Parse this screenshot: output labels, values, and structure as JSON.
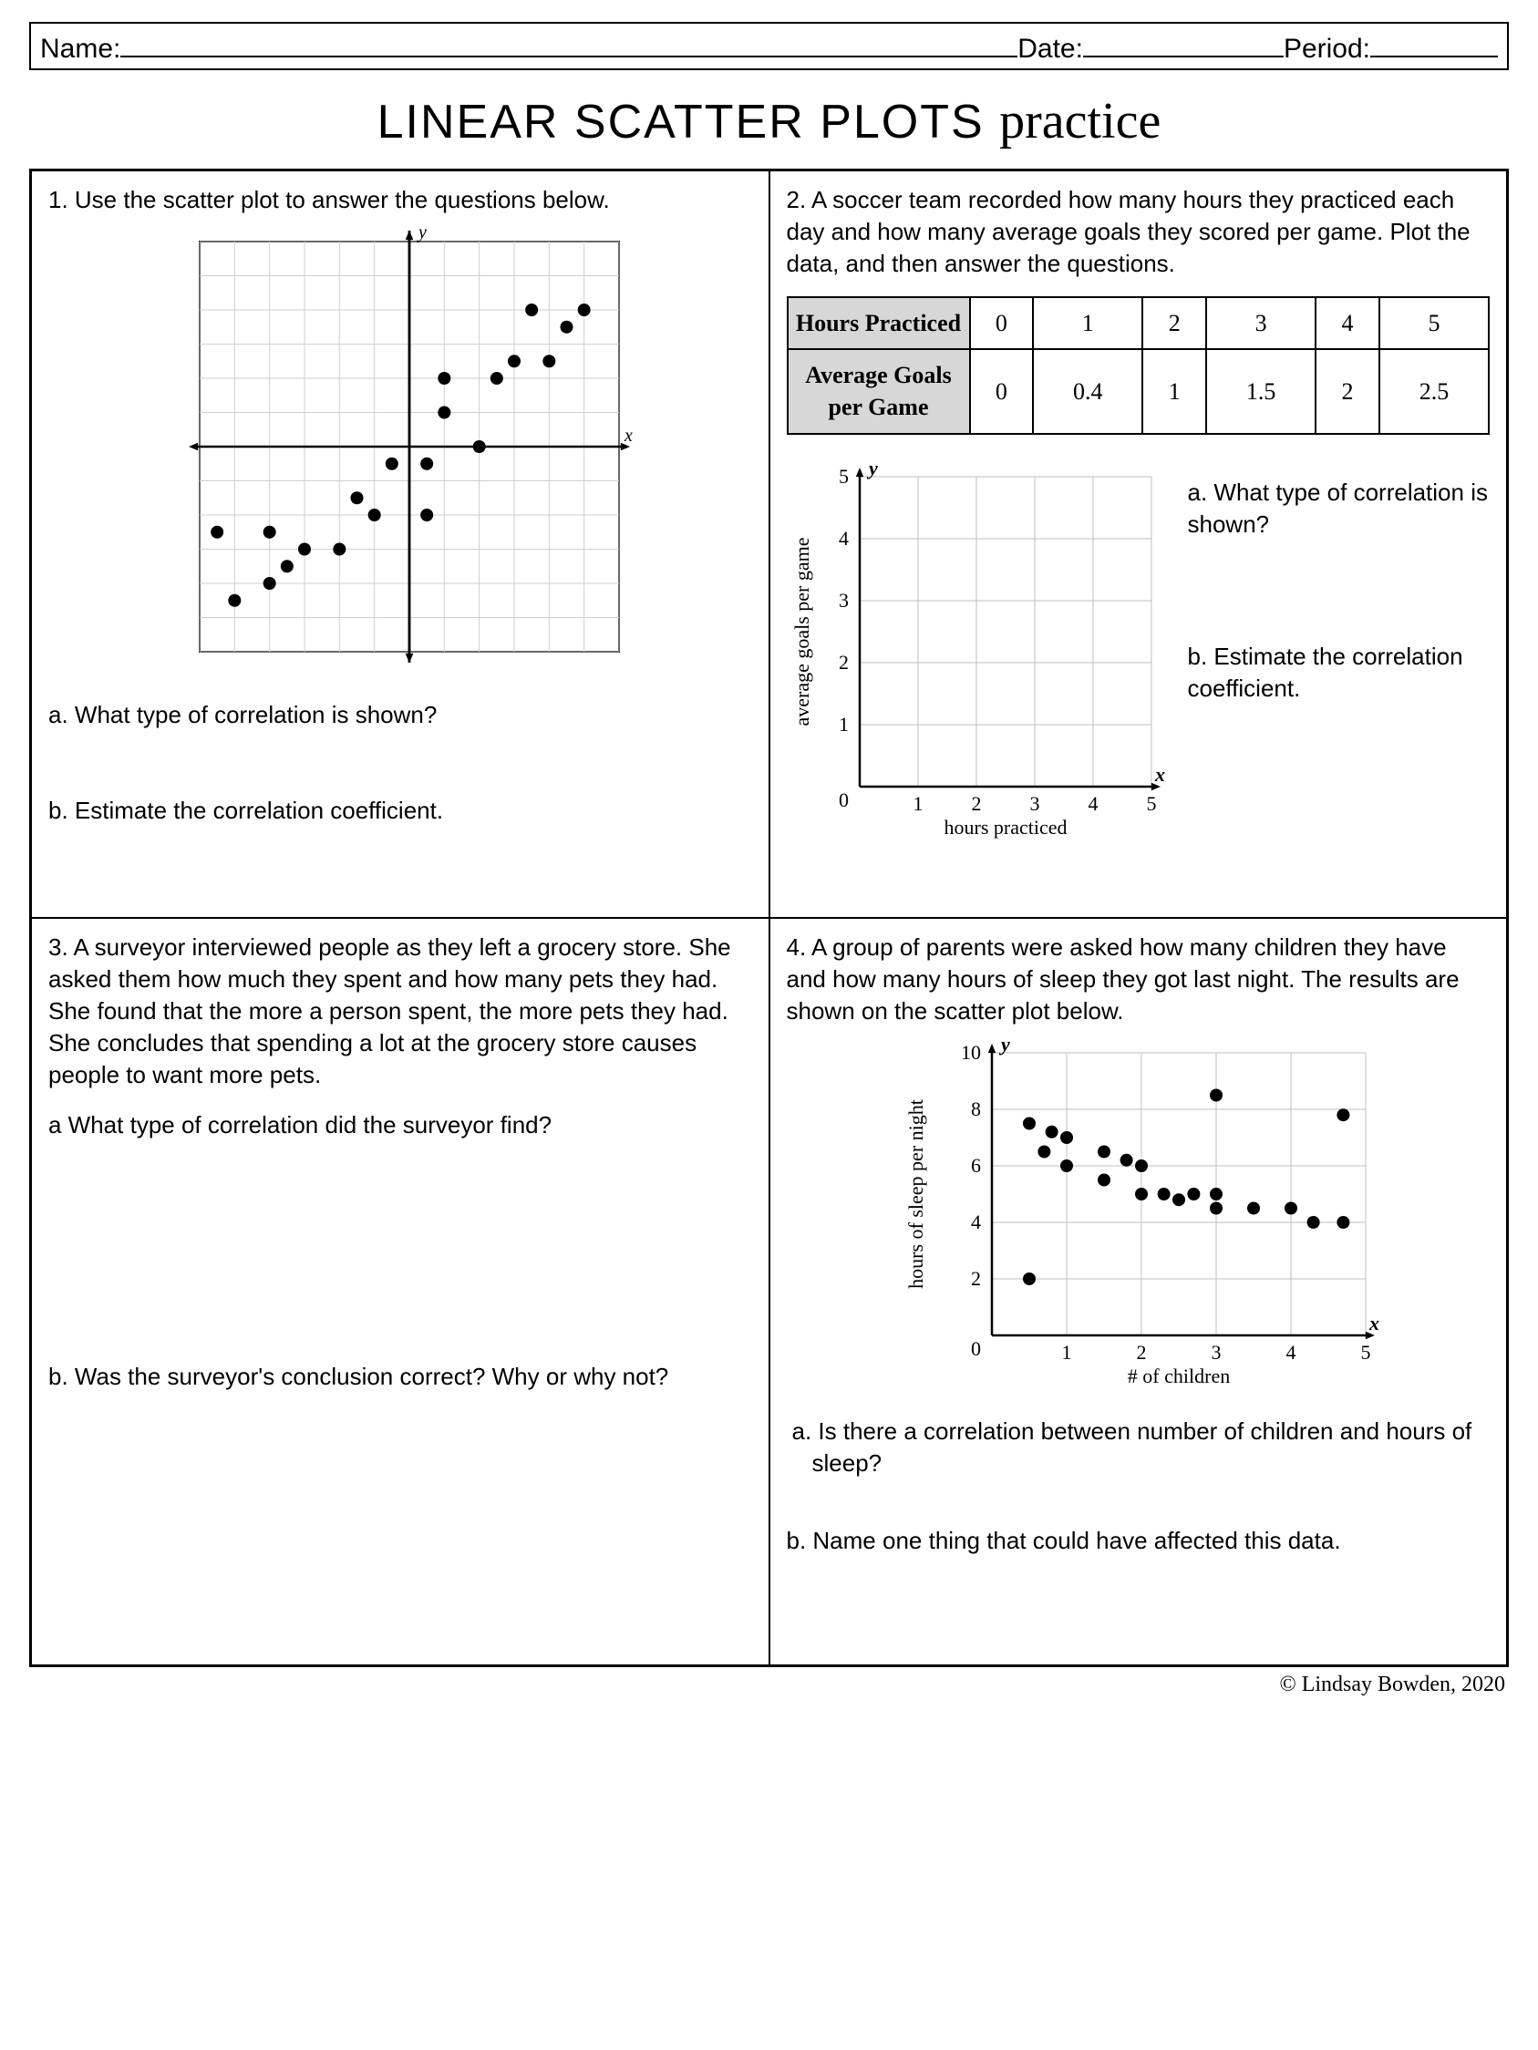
{
  "header": {
    "name_label": "Name:",
    "date_label": "Date:",
    "period_label": "Period:"
  },
  "title_main": "LINEAR SCATTER PLOTS ",
  "title_script": "practice",
  "footer": "© Lindsay Bowden, 2020",
  "q1": {
    "prompt": "1. Use the scatter plot to answer the questions below.",
    "qa": "a. What type of correlation is shown?",
    "qb": "b. Estimate the correlation coefficient.",
    "chart": {
      "type": "scatter",
      "xrange": [
        -6,
        6
      ],
      "yrange": [
        -6,
        6
      ],
      "grid_step": 1,
      "grid_color": "#cfcfcf",
      "axis_color": "#000000",
      "point_color": "#000000",
      "point_radius": 7,
      "points": [
        [
          -5.5,
          -2.5
        ],
        [
          -5,
          -4.5
        ],
        [
          -4,
          -4
        ],
        [
          -4,
          -2.5
        ],
        [
          -3.5,
          -3.5
        ],
        [
          -3,
          -3
        ],
        [
          -2,
          -3
        ],
        [
          -1.5,
          -1.5
        ],
        [
          -1,
          -2
        ],
        [
          -0.5,
          -0.5
        ],
        [
          0.5,
          -0.5
        ],
        [
          0.5,
          -2
        ],
        [
          1,
          1
        ],
        [
          1,
          2
        ],
        [
          2,
          0
        ],
        [
          2.5,
          2
        ],
        [
          3,
          2.5
        ],
        [
          3.5,
          4
        ],
        [
          4,
          2.5
        ],
        [
          4.5,
          3.5
        ],
        [
          5,
          4
        ]
      ],
      "y_label": "y",
      "x_label": "x"
    }
  },
  "q2": {
    "prompt": "2.  A soccer team recorded how many hours they practiced each day and how many average goals they scored per game. Plot the data, and then answer the questions.",
    "table": {
      "row1_label": "Hours Practiced",
      "row2_label": "Average Goals per Game",
      "row1": [
        "0",
        "1",
        "2",
        "3",
        "4",
        "5"
      ],
      "row2": [
        "0",
        "0.4",
        "1",
        "1.5",
        "2",
        "2.5"
      ]
    },
    "qa": "a. What type of correlation is shown?",
    "qb": "b. Estimate the correlation coefficient.",
    "chart": {
      "type": "blank-grid",
      "xrange": [
        0,
        5
      ],
      "yrange": [
        0,
        5
      ],
      "grid_step": 1,
      "grid_color": "#bfbfbf",
      "axis_color": "#000000",
      "xlabel": "hours practiced",
      "ylabel": "average goals per game",
      "y_ax_label": "y",
      "x_ax_label": "x",
      "tick_fontsize": 22
    }
  },
  "q3": {
    "prompt": "3. A surveyor interviewed people as they left a grocery store. She asked them how much they spent and how many pets they had. She found that the more a person spent, the more pets they had. She concludes that spending a lot at the grocery store causes people to want more pets.",
    "qa": "a What type of correlation did the surveyor find?",
    "qb": "b. Was the surveyor's conclusion correct? Why or why not?"
  },
  "q4": {
    "prompt": "4. A group of parents were asked how many children they have and how many hours of sleep they got last night. The results are shown on the scatter plot below.",
    "qa": "a. Is there a correlation between number of children and hours of sleep?",
    "qb": "b. Name one thing that could have affected this data.",
    "chart": {
      "type": "scatter",
      "xrange": [
        0,
        5
      ],
      "yrange": [
        0,
        10
      ],
      "xtick_step": 1,
      "ytick_step": 2,
      "grid_color": "#bfbfbf",
      "axis_color": "#000000",
      "point_color": "#000000",
      "point_radius": 7,
      "xlabel": "# of children",
      "ylabel": "hours of sleep per night",
      "y_ax_label": "y",
      "x_ax_label": "x",
      "points": [
        [
          0.5,
          2
        ],
        [
          0.5,
          7.5
        ],
        [
          0.7,
          6.5
        ],
        [
          0.8,
          7.2
        ],
        [
          1,
          7
        ],
        [
          1,
          6
        ],
        [
          1.5,
          6.5
        ],
        [
          1.5,
          5.5
        ],
        [
          1.8,
          6.2
        ],
        [
          2,
          5
        ],
        [
          2,
          6
        ],
        [
          2.3,
          5
        ],
        [
          2.5,
          4.8
        ],
        [
          2.7,
          5
        ],
        [
          3,
          4.5
        ],
        [
          3,
          5
        ],
        [
          3,
          8.5
        ],
        [
          3.5,
          4.5
        ],
        [
          4,
          4.5
        ],
        [
          4.3,
          4
        ],
        [
          4.7,
          7.8
        ],
        [
          4.7,
          4
        ]
      ]
    }
  }
}
